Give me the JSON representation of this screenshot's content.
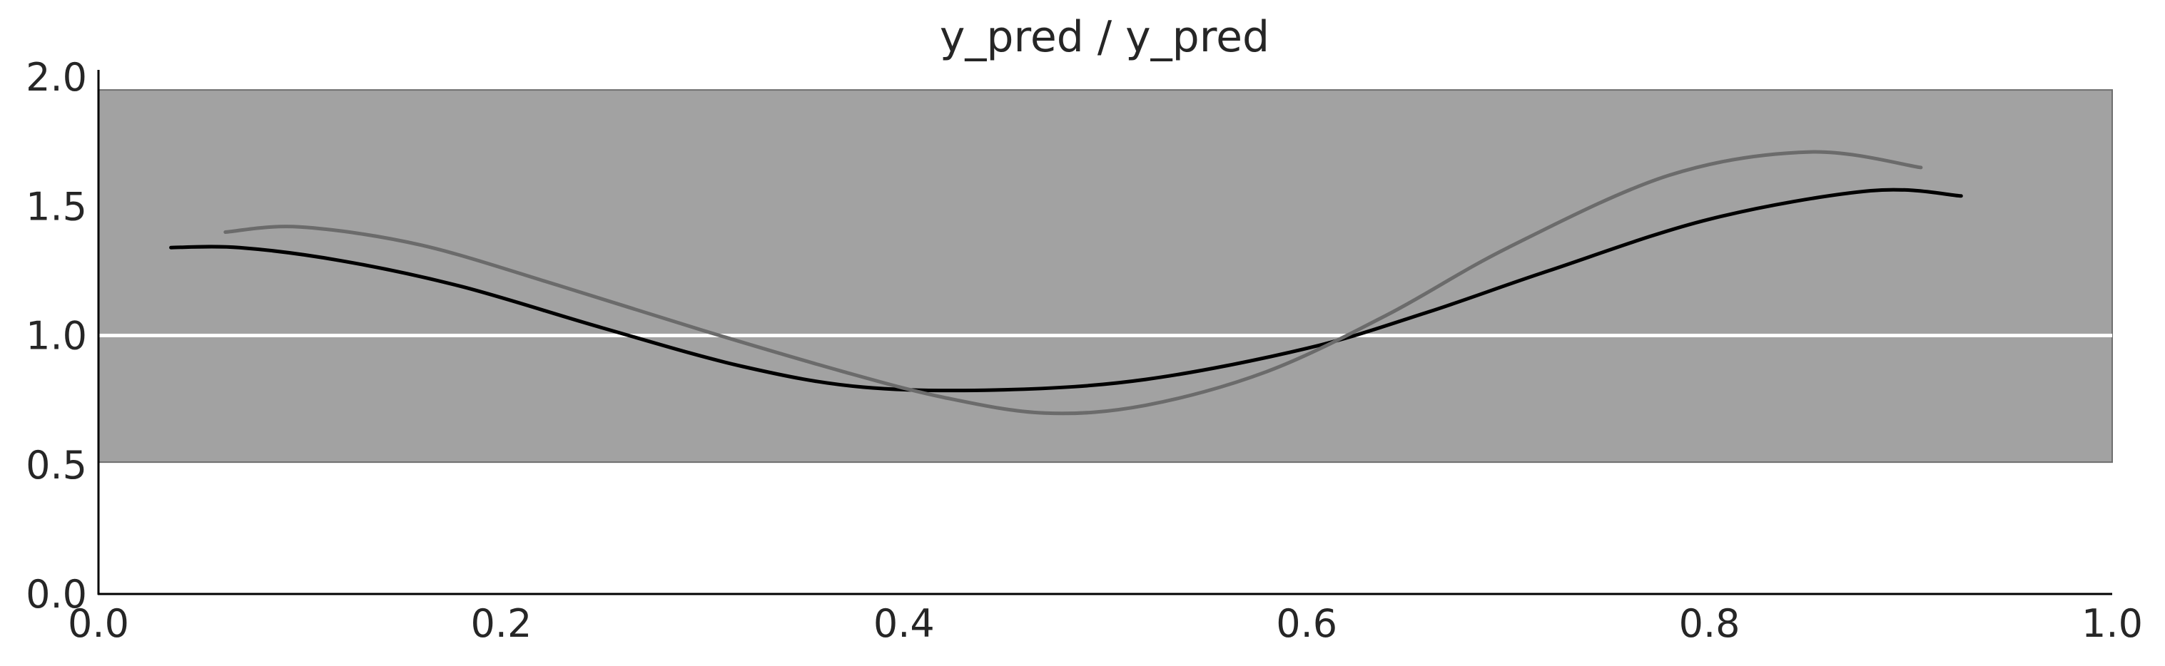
{
  "chart_data": {
    "type": "line",
    "title": "y_pred / y_pred",
    "xlabel": "",
    "ylabel": "",
    "xlim": [
      0.0,
      1.0
    ],
    "ylim": [
      0.0,
      2.0
    ],
    "x_ticks": [
      "0.0",
      "0.2",
      "0.4",
      "0.6",
      "0.8",
      "1.0"
    ],
    "y_ticks": [
      "0.0",
      "0.5",
      "1.0",
      "1.5",
      "2.0"
    ],
    "grid": false,
    "legend": "none",
    "band": {
      "y_low": 0.51,
      "y_high": 1.95,
      "color": "#a2a2a2"
    },
    "reference_line": {
      "y": 1.0,
      "color": "#ffffff"
    },
    "series": [
      {
        "color": "#000000",
        "x": [
          0.036,
          0.07,
          0.12,
          0.18,
          0.25,
          0.32,
          0.38,
          0.45,
          0.52,
          0.6,
          0.66,
          0.72,
          0.8,
          0.88,
          0.925
        ],
        "y": [
          1.34,
          1.34,
          1.29,
          1.19,
          1.03,
          0.88,
          0.8,
          0.79,
          0.83,
          0.95,
          1.09,
          1.25,
          1.45,
          1.56,
          1.54
        ]
      },
      {
        "color": "#6b6b6b",
        "x": [
          0.063,
          0.1,
          0.16,
          0.23,
          0.3,
          0.37,
          0.42,
          0.47,
          0.52,
          0.58,
          0.64,
          0.7,
          0.78,
          0.85,
          0.905
        ],
        "y": [
          1.4,
          1.42,
          1.35,
          1.19,
          1.02,
          0.86,
          0.76,
          0.7,
          0.73,
          0.86,
          1.08,
          1.34,
          1.62,
          1.71,
          1.65
        ]
      }
    ]
  }
}
